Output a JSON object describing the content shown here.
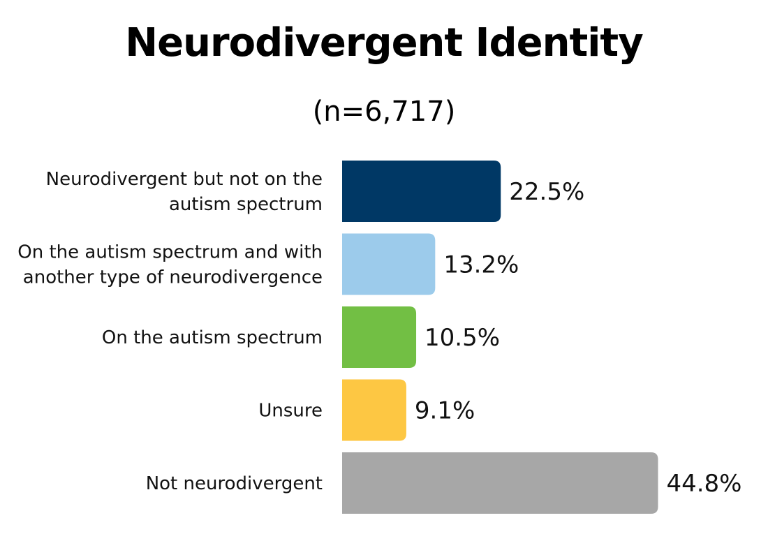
{
  "chart_data": {
    "type": "bar",
    "orientation": "horizontal",
    "title": "Neurodivergent Identity",
    "subtitle": "(n=6,717)",
    "categories": [
      "Neurodivergent but not on the autism spectrum",
      "On the autism spectrum and with another type of neurodivergence",
      "On the autism spectrum",
      "Unsure",
      "Not neurodivergent"
    ],
    "category_lines": [
      [
        "Neurodivergent but not on the",
        "autism spectrum"
      ],
      [
        "On the autism spectrum and with",
        "another type of neurodivergence"
      ],
      [
        "On the autism spectrum"
      ],
      [
        "Unsure"
      ],
      [
        "Not neurodivergent"
      ]
    ],
    "values": [
      22.5,
      13.2,
      10.5,
      9.1,
      44.8
    ],
    "value_labels": [
      "22.5%",
      "13.2%",
      "10.5%",
      "9.1%",
      "44.8%"
    ],
    "colors": [
      "#003865",
      "#9ccbeb",
      "#72bf44",
      "#fdc743",
      "#a7a7a7"
    ],
    "unit": "%",
    "xlim": [
      0,
      50
    ],
    "grid": false,
    "legend": "none"
  }
}
